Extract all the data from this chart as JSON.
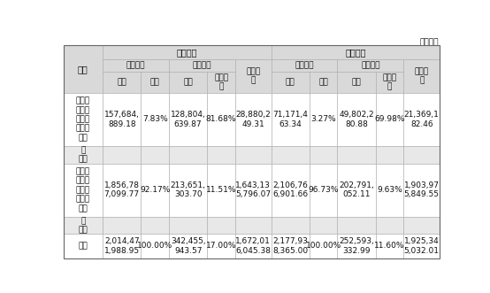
{
  "unit_label": "单位：元",
  "col0_header": "类别",
  "level1_headers": [
    "期末余额",
    "期初余额"
  ],
  "level2_end": [
    "账面余额",
    "坡账准备",
    "账面价值"
  ],
  "level2_begin": [
    "账面余额",
    "坡账准备",
    "账面价值"
  ],
  "level3": [
    "金额",
    "比例",
    "金额",
    "计提比\n例",
    "账面价\n值",
    "金额",
    "比例",
    "金额",
    "计提比\n例",
    "账面价\n值"
  ],
  "rows": [
    {
      "label": "按单项\n计提坡\n账准备\n的应收\n账款",
      "data": [
        "157,684,\n889.18",
        "7.83%",
        "128,804,\n639.87",
        "81.68%",
        "28,880,2\n49.31",
        "71,171,4\n63.34",
        "3.27%",
        "49,802,2\n80.88",
        "69.98%",
        "21,369,1\n82.46"
      ],
      "gray": false,
      "tall": true
    },
    {
      "label": "其\n中：",
      "data": [
        "",
        "",
        "",
        "",
        "",
        "",
        "",
        "",
        "",
        ""
      ],
      "gray": true,
      "tall": false
    },
    {
      "label": "按组合\n计提坡\n账准备\n的应收\n账款",
      "data": [
        "1,856,78\n7,099.77",
        "92.17%",
        "213,651,\n303.70",
        "11.51%",
        "1,643,13\n5,796.07",
        "2,106,76\n6,901.66",
        "96.73%",
        "202,791,\n052.11",
        "9.63%",
        "1,903,97\n5,849.55"
      ],
      "gray": false,
      "tall": true
    },
    {
      "label": "其\n中：",
      "data": [
        "",
        "",
        "",
        "",
        "",
        "",
        "",
        "",
        "",
        ""
      ],
      "gray": true,
      "tall": false
    },
    {
      "label": "合计",
      "data": [
        "2,014,47\n1,988.95",
        "100.00%",
        "342,455,\n943.57",
        "17.00%",
        "1,672,01\n6,045.38",
        "2,177,93\n8,365.00",
        "100.00%",
        "252,593,\n332.99",
        "11.60%",
        "1,925,34\n5,032.01"
      ],
      "gray": false,
      "tall": false
    }
  ],
  "bg_white": "#f5f5f5",
  "bg_header": "#d9d9d9",
  "bg_gray_row": "#e8e8e8",
  "bg_data": "#ffffff",
  "border_color": "#aaaaaa",
  "text_color": "#111111"
}
